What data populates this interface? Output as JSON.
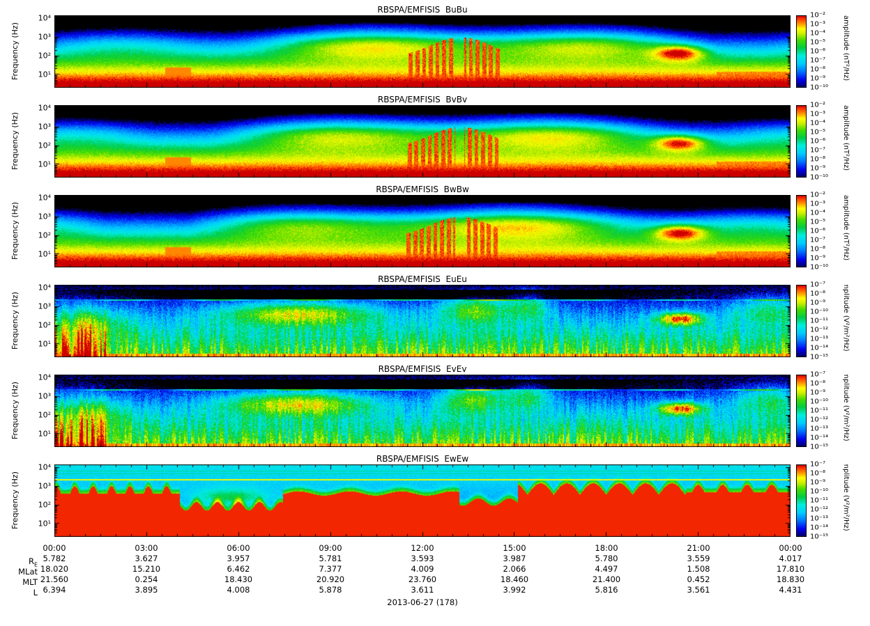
{
  "date_label": "2013-06-27 (178)",
  "ephemeris": {
    "rows": [
      {
        "label_main": "R",
        "label_sub": "E",
        "values": [
          "5.782",
          "3.627",
          "3.957",
          "5.781",
          "3.593",
          "3.987",
          "5.780",
          "3.559",
          "4.017"
        ]
      },
      {
        "label_main": "MLat",
        "label_sub": "",
        "values": [
          "18.020",
          "15.210",
          "6.462",
          "7.377",
          "4.009",
          "2.066",
          "4.497",
          "1.508",
          "17.810"
        ]
      },
      {
        "label_main": "MLT",
        "label_sub": "",
        "values": [
          "21.560",
          "0.254",
          "18.430",
          "20.920",
          "23.760",
          "18.460",
          "21.400",
          "0.452",
          "18.830"
        ]
      },
      {
        "label_main": "L",
        "label_sub": "",
        "values": [
          "6.394",
          "3.895",
          "4.008",
          "5.878",
          "3.611",
          "3.992",
          "5.816",
          "3.561",
          "4.431"
        ]
      }
    ]
  },
  "chart_data": {
    "type": "heatmap",
    "description": "Six 24-hour wave power spectrograms (frequency vs time, log color scale) from RBSP-A EMFISIS: three magnetic components (BuBu, BvBv, BwBw) and three electric components (EuEu, EvEv, EwEw).",
    "x_axis": {
      "label": "",
      "ticks": [
        "00:00",
        "03:00",
        "06:00",
        "09:00",
        "12:00",
        "15:00",
        "18:00",
        "21:00",
        "00:00"
      ],
      "range_hours": [
        0,
        24
      ]
    },
    "y_axis": {
      "label": "Frequency (Hz)",
      "scale": "log",
      "ticks": [
        "10⁴",
        "10³",
        "10²",
        "10¹"
      ],
      "range_hz": [
        2,
        14000
      ]
    },
    "colormap": [
      {
        "v": 0.0,
        "c": "#000066"
      },
      {
        "v": 0.1,
        "c": "#0000ee"
      },
      {
        "v": 0.22,
        "c": "#0077ff"
      },
      {
        "v": 0.33,
        "c": "#00ccff"
      },
      {
        "v": 0.44,
        "c": "#00eedd"
      },
      {
        "v": 0.55,
        "c": "#00cc44"
      },
      {
        "v": 0.66,
        "c": "#44dd00"
      },
      {
        "v": 0.75,
        "c": "#ccee00"
      },
      {
        "v": 0.82,
        "c": "#ffff00"
      },
      {
        "v": 0.9,
        "c": "#ff8800"
      },
      {
        "v": 0.96,
        "c": "#ff3300"
      },
      {
        "v": 1.0,
        "c": "#cc0000"
      }
    ],
    "panels": [
      {
        "title": "RBSPA/EMFISIS  BuBu",
        "style": "B",
        "cbar_label": "amplitude (nT²/Hz)",
        "cbar_ticks": [
          "10⁻²",
          "10⁻³",
          "10⁻⁴",
          "10⁻⁵",
          "10⁻⁶",
          "10⁻⁷",
          "10⁻⁸",
          "10⁻⁹",
          "10⁻¹⁰"
        ],
        "cbar_range_log10": [
          -2,
          -10
        ],
        "features": "black above ~2 kHz; broad green band 10–1000 Hz; yellow/red below ~20 Hz; strong red burst columns ~11:30–14:30; yellow patch ~20:00–21:00"
      },
      {
        "title": "RBSPA/EMFISIS  BvBv",
        "style": "B",
        "cbar_label": "amplitude (nT²/Hz)",
        "cbar_ticks": [
          "10⁻²",
          "10⁻³",
          "10⁻⁴",
          "10⁻⁵",
          "10⁻⁶",
          "10⁻⁷",
          "10⁻⁸",
          "10⁻⁹",
          "10⁻¹⁰"
        ],
        "cbar_range_log10": [
          -2,
          -10
        ],
        "features": "same morphology as BuBu"
      },
      {
        "title": "RBSPA/EMFISIS  BwBw",
        "style": "B",
        "cbar_label": "amplitude (nT²/Hz)",
        "cbar_ticks": [
          "10⁻²",
          "10⁻³",
          "10⁻⁴",
          "10⁻⁵",
          "10⁻⁶",
          "10⁻⁷",
          "10⁻⁸",
          "10⁻⁹",
          "10⁻¹⁰"
        ],
        "cbar_range_log10": [
          -2,
          -10
        ],
        "features": "same morphology as BuBu"
      },
      {
        "title": "RBSPA/EMFISIS  EuEu",
        "style": "E",
        "cbar_label": "amplitude (V²/m²/Hz)",
        "cbar_ticks": [
          "10⁻⁷",
          "10⁻⁸",
          "10⁻⁹",
          "10⁻¹⁰",
          "10⁻¹¹",
          "10⁻¹²",
          "10⁻¹³",
          "10⁻¹⁴",
          "10⁻¹⁵"
        ],
        "cbar_range_log10": [
          -7,
          -15
        ],
        "features": "mostly blue/cyan; narrow cyan line near 2 kHz; dark band 1–5 kHz; green blobs ~08:00 and ~13:30; yellow patch ~20:15; thin orange line at bottom"
      },
      {
        "title": "RBSPA/EMFISIS  EvEv",
        "style": "E",
        "cbar_label": "amplitude (V²/m²/Hz)",
        "cbar_ticks": [
          "10⁻⁷",
          "10⁻⁸",
          "10⁻⁹",
          "10⁻¹⁰",
          "10⁻¹¹",
          "10⁻¹²",
          "10⁻¹³",
          "10⁻¹⁴",
          "10⁻¹⁵"
        ],
        "cbar_range_log10": [
          -7,
          -15
        ],
        "features": "same morphology as EuEu"
      },
      {
        "title": "RBSPA/EMFISIS  EwEw",
        "style": "Ew",
        "cbar_label": "amplitude (V²/m²/Hz)",
        "cbar_ticks": [
          "10⁻⁷",
          "10⁻⁸",
          "10⁻⁹",
          "10⁻¹⁰",
          "10⁻¹¹",
          "10⁻¹²",
          "10⁻¹³",
          "10⁻¹⁴",
          "10⁻¹⁵"
        ],
        "cbar_range_log10": [
          -7,
          -15
        ],
        "features": "saturated red below ~100 Hz with scalloped oscillating upper edge; cyan above; bright yellow-green horizontal line near 2 kHz; dips in red region ~04:30 and ~13:30"
      }
    ]
  }
}
